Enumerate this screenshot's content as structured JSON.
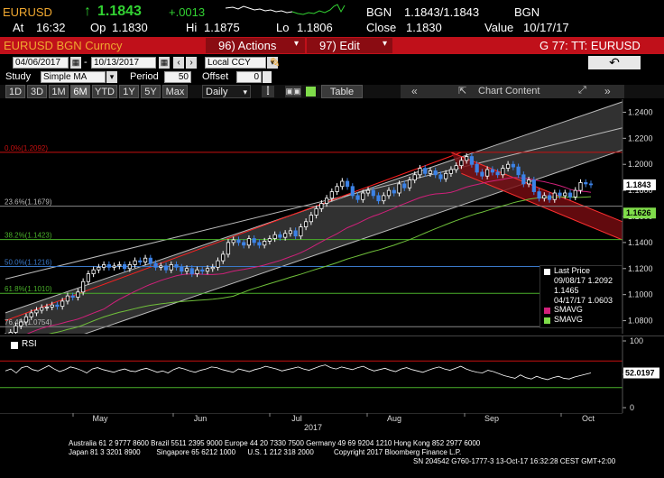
{
  "quote": {
    "ticker": "EURUSD",
    "arrow": "↑",
    "last": "1.1843",
    "change": "+.0013",
    "source": "BGN",
    "bid_ask": "1.1843/1.1843",
    "source2": "BGN",
    "at_label": "At",
    "at_time": "16:32",
    "op_label": "Op",
    "op_value": "1.1830",
    "hi_label": "Hi",
    "hi_value": "1.1875",
    "lo_label": "Lo",
    "lo_value": "1.1806",
    "close_label": "Close",
    "close_value": "1.1830",
    "value_label": "Value",
    "value_date": "10/17/17"
  },
  "menubar": {
    "security": "EURUSD BGN Curncy",
    "actions": "96) Actions",
    "edit": "97) Edit",
    "page_code": "G 77: TT: EURUSD"
  },
  "toolbar1": {
    "start_date": "04/06/2017",
    "end_date": "10/13/2017",
    "currency": "Local CCY"
  },
  "toolbar2": {
    "study_label": "Study",
    "study_value": "Simple MA",
    "period_label": "Period",
    "period_value": "50",
    "offset_label": "Offset",
    "offset_value": "0"
  },
  "toolbar3": {
    "ranges": [
      "1D",
      "3D",
      "1M",
      "6M",
      "YTD",
      "1Y",
      "5Y",
      "Max"
    ],
    "selected_range": "6M",
    "frequency": "Daily",
    "table_label": "Table",
    "chart_content": "Chart Content"
  },
  "chart_data": [
    {
      "type": "candlestick",
      "title": "",
      "x_months": [
        "May",
        "Jun",
        "Jul",
        "Aug",
        "Sep",
        "Oct"
      ],
      "x_year": "2017",
      "y_ticks": [
        "1.2400",
        "1.2200",
        "1.2000",
        "1.1800",
        "1.1600",
        "1.1400",
        "1.1200",
        "1.1000",
        "1.0800"
      ],
      "ylim": [
        1.07,
        1.25
      ],
      "last_price_tag": "1.1843",
      "sma_tag": "1.1626",
      "fib_levels": [
        {
          "label": "0.0%(1.2092)",
          "value": 1.2092
        },
        {
          "label": "23.6%(1.1679)",
          "value": 1.1679
        },
        {
          "label": "38.2%(1.1423)",
          "value": 1.1423
        },
        {
          "label": "50.0%(1.1216)",
          "value": 1.1216
        },
        {
          "label": "61.8%(1.1010)",
          "value": 1.101
        },
        {
          "label": "76.4%(1.0754)",
          "value": 1.0754
        }
      ],
      "closes": [
        1.068,
        1.071,
        1.076,
        1.079,
        1.083,
        1.086,
        1.088,
        1.09,
        1.0905,
        1.092,
        1.091,
        1.095,
        1.099,
        1.098,
        1.102,
        1.11,
        1.116,
        1.119,
        1.121,
        1.123,
        1.121,
        1.122,
        1.123,
        1.12,
        1.123,
        1.126,
        1.125,
        1.128,
        1.124,
        1.121,
        1.122,
        1.119,
        1.123,
        1.121,
        1.118,
        1.12,
        1.116,
        1.119,
        1.118,
        1.12,
        1.121,
        1.126,
        1.131,
        1.14,
        1.142,
        1.14,
        1.138,
        1.143,
        1.14,
        1.138,
        1.141,
        1.143,
        1.146,
        1.144,
        1.147,
        1.149,
        1.145,
        1.152,
        1.156,
        1.161,
        1.166,
        1.17,
        1.174,
        1.179,
        1.183,
        1.187,
        1.183,
        1.176,
        1.173,
        1.178,
        1.18,
        1.176,
        1.172,
        1.176,
        1.18,
        1.178,
        1.185,
        1.182,
        1.188,
        1.192,
        1.197,
        1.193,
        1.195,
        1.192,
        1.189,
        1.193,
        1.196,
        1.199,
        1.203,
        1.206,
        1.2,
        1.194,
        1.191,
        1.196,
        1.194,
        1.192,
        1.197,
        1.2,
        1.198,
        1.192,
        1.185,
        1.188,
        1.179,
        1.174,
        1.176,
        1.173,
        1.178,
        1.176,
        1.178,
        1.175,
        1.18,
        1.186,
        1.185,
        1.1843
      ],
      "legend": {
        "last_price": "Last Price",
        "high_line": "09/08/17 1.2092",
        "avg_line": "1.1465",
        "low_line": "04/17/17 1.0603",
        "smavg1": "SMAVG",
        "smavg2": "SMAVG"
      },
      "colors": {
        "up": "#ffffff",
        "down": "#3c82e6",
        "sma50": "#d0207a",
        "sma100": "#6fbf3a",
        "channel": "#ffffff",
        "red_channel": "#ff2020"
      }
    },
    {
      "type": "line",
      "title": "",
      "series_label": "RSI",
      "y_ticks": [
        "100",
        "50",
        "0"
      ],
      "ylim": [
        0,
        100
      ],
      "overbought": 70,
      "oversold": 30,
      "last_tag": "52.0197",
      "values": [
        55,
        58,
        52,
        60,
        62,
        57,
        55,
        59,
        63,
        58,
        54,
        57,
        61,
        59,
        56,
        52,
        58,
        60,
        57,
        55,
        53,
        56,
        58,
        55,
        54,
        57,
        59,
        56,
        53,
        55,
        52,
        57,
        60,
        58,
        55,
        53,
        56,
        58,
        61,
        60,
        57,
        55,
        53,
        58,
        56,
        54,
        57,
        59,
        62,
        60,
        58,
        55,
        57,
        59,
        61,
        58,
        56,
        59,
        62,
        64,
        60,
        58,
        61,
        59,
        57,
        60,
        62,
        58,
        55,
        57,
        59,
        56,
        54,
        58,
        60,
        57,
        55,
        53,
        56,
        59,
        61,
        58,
        56,
        59,
        62,
        58,
        55,
        53,
        52,
        56,
        54,
        51,
        48,
        46,
        44,
        49,
        45,
        43,
        47,
        44,
        42,
        45,
        47,
        44,
        43,
        46,
        48,
        50,
        52
      ]
    }
  ],
  "footer": {
    "line1": "Australia 61 2 9777 8600 Brazil 5511 2395 9000 Europe 44 20 7330 7500 Germany 49 69 9204 1210 Hong Kong 852 2977 6000",
    "line2": "Japan 81 3 3201 8900        Singapore 65 6212 1000      U.S. 1 212 318 2000          Copyright 2017 Bloomberg Finance L.P.",
    "line3": "SN 204542 G760-1777-3 13-Oct-17 16:32:28 CEST GMT+2:00"
  }
}
